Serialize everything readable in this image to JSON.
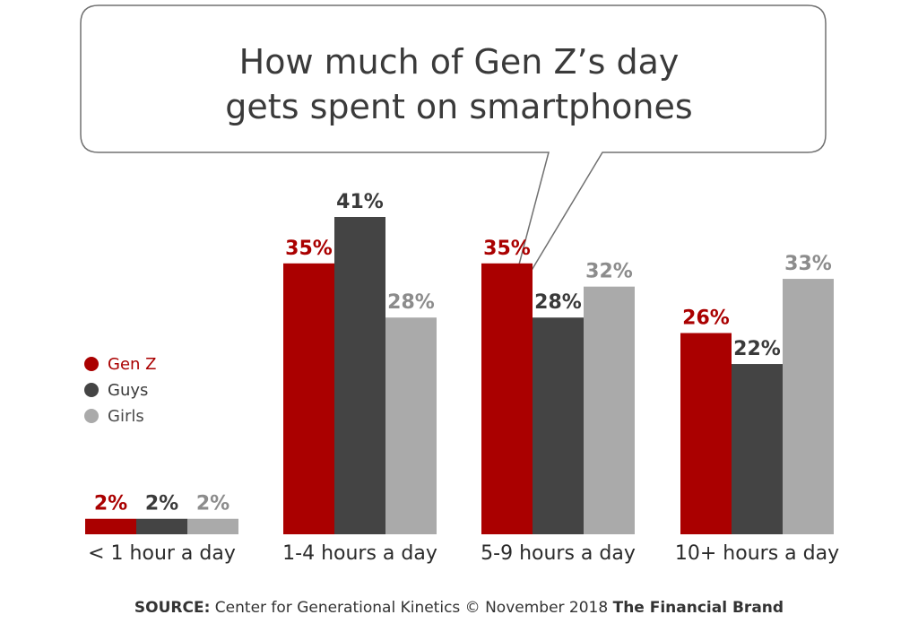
{
  "colors": {
    "gen_z": "#aa0000",
    "guys": "#444444",
    "girls": "#aaaaaa",
    "title_border": "#707070",
    "text": "#2b2b2b"
  },
  "source": {
    "label": "SOURCE:",
    "text": " Center for Generational Kinetics © November 2018 ",
    "brand": "The Financial Brand"
  },
  "chart_data": {
    "type": "bar",
    "title_lines": [
      "How much of Gen Z’s day",
      "gets spent on smartphones"
    ],
    "categories": [
      "< 1 hour a day",
      "1-4 hours a day",
      "5-9 hours a day",
      "10+ hours a day"
    ],
    "series": [
      {
        "name": "Gen Z",
        "color": "#aa0000",
        "values": [
          2,
          35,
          35,
          26
        ],
        "labels": [
          "2%",
          "35%",
          "35%",
          "26%"
        ]
      },
      {
        "name": "Guys",
        "color": "#444444",
        "values": [
          2,
          41,
          28,
          22
        ],
        "labels": [
          "2%",
          "41%",
          "28%",
          "22%"
        ]
      },
      {
        "name": "Girls",
        "color": "#aaaaaa",
        "values": [
          2,
          28,
          32,
          33
        ],
        "labels": [
          "2%",
          "28%",
          "32%",
          "33%"
        ]
      }
    ],
    "ylim": [
      0,
      41
    ],
    "grid": false,
    "legend_position": "left"
  }
}
